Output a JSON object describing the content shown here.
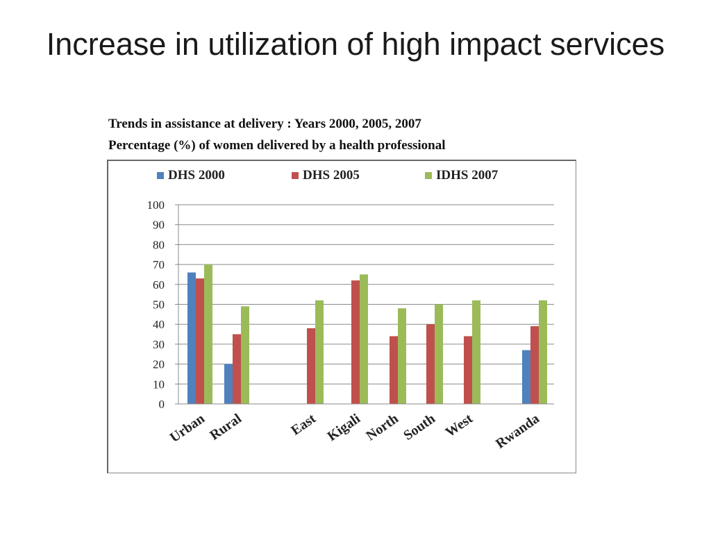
{
  "slide": {
    "title": "Increase in utilization of high impact services"
  },
  "caption": {
    "line1": "Trends in assistance at delivery : Years 2000, 2005, 2007",
    "line2": "Percentage (%) of women delivered by a health professional"
  },
  "chart_data": {
    "type": "bar",
    "categories": [
      "Urban",
      "Rural",
      "East",
      "Kigali",
      "North",
      "South",
      "West",
      "Rwanda"
    ],
    "series": [
      {
        "name": "DHS 2000",
        "color": "#4f81bd",
        "values": [
          66,
          20,
          null,
          null,
          null,
          null,
          null,
          27
        ]
      },
      {
        "name": "DHS 2005",
        "color": "#c0504d",
        "values": [
          63,
          35,
          38,
          62,
          34,
          40,
          34,
          39
        ]
      },
      {
        "name": "IDHS 2007",
        "color": "#9bbb59",
        "values": [
          70,
          49,
          52,
          65,
          48,
          50,
          52,
          52
        ]
      }
    ],
    "ylim": [
      0,
      100
    ],
    "yticks": [
      "0",
      "10",
      "20",
      "30",
      "40",
      "50",
      "60",
      "70",
      "80",
      "90",
      "100"
    ],
    "grid": true,
    "legend_position": "top"
  }
}
